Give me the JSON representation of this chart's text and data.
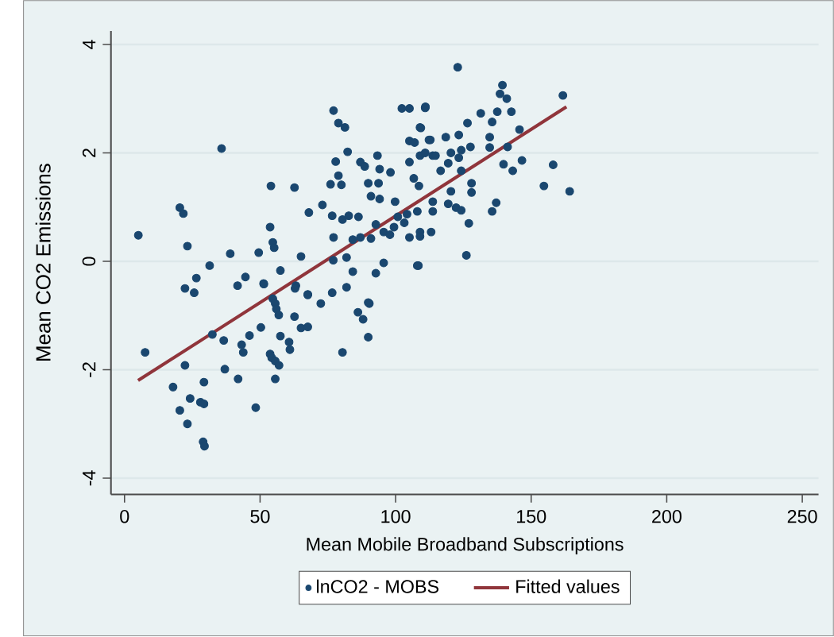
{
  "chart_data": {
    "type": "scatter",
    "xlabel": "Mean Mobile Broadband Subscriptions",
    "ylabel": "Mean CO2 Emissions",
    "xlim": [
      -5,
      256
    ],
    "ylim": [
      -4.3,
      4.25
    ],
    "xticks": [
      0,
      50,
      100,
      150,
      200,
      250
    ],
    "yticks": [
      -4,
      -2,
      0,
      2,
      4
    ],
    "grid": "y",
    "legend": "bottom",
    "series": [
      {
        "name": "lnCO2 - MOBS",
        "type": "scatter",
        "marker": "circle",
        "color": "#1a476f",
        "x": [
          5.1,
          20.4,
          21.7,
          23.2,
          35.8,
          31.4,
          39,
          49.5,
          53.7,
          54,
          62.7,
          68,
          73,
          54.7,
          55.2,
          65.1,
          77.1,
          78.9,
          81.3,
          82.3,
          77.9,
          76,
          80,
          78.9,
          87,
          88.6,
          93.3,
          94.1,
          98.1,
          89.9,
          93.7,
          90.9,
          94.1,
          99.8,
          76.6,
          80.4,
          82.7,
          86.3,
          77.1,
          84.2,
          87,
          90.9,
          95.6,
          97.9,
          99.4,
          103.2,
          100.8,
          104.2,
          102.3,
          105.1,
          110.9,
          109,
          105.1,
          107,
          112.8,
          105.1,
          109,
          113.7,
          106.7,
          108.6,
          92.7,
          77,
          81.9,
          84.2,
          95.6,
          92.7,
          109,
          105.1,
          108.4,
          113.7,
          57.5,
          41.7,
          44.6,
          51.3,
          22.3,
          25.7,
          26.5,
          63.2,
          67.6,
          72.4,
          76.6,
          81.9,
          90.3,
          7.6,
          22.3,
          17.9,
          20.4,
          23.2,
          24.2,
          28,
          29.3,
          29.3,
          29,
          29.5,
          32.4,
          36.6,
          37,
          41.9,
          48.4,
          43.2,
          43.8,
          46.1,
          50.3,
          51.4,
          54.7,
          55.6,
          56,
          56.9,
          57.5,
          53.7,
          54.3,
          55.6,
          57,
          55.6,
          60.7,
          61,
          62.9,
          62.7,
          65.1,
          67.6,
          67.6,
          80.4,
          86.1,
          88,
          89.9,
          89.9,
          122.9,
          139.4,
          138.5,
          141,
          161.7,
          111,
          131.4,
          137.5,
          142.7,
          135.6,
          126.5,
          109.3,
          145.7,
          118.5,
          123.3,
          134.7,
          112.3,
          110.9,
          114.7,
          120.4,
          124.2,
          127.6,
          119.4,
          123.3,
          116.6,
          124.2,
          134.7,
          141.3,
          139.8,
          143.2,
          146.6,
          158.1,
          154.7,
          164.2,
          128,
          128,
          120.4,
          113.7,
          119.4,
          122.3,
          124.2,
          137.1,
          135.6,
          108,
          127,
          113.1,
          109,
          126.1,
          108
        ],
        "values": [
          0.48,
          0.99,
          0.88,
          0.28,
          2.08,
          -0.08,
          0.14,
          0.16,
          0.63,
          1.39,
          1.36,
          0.9,
          1.04,
          0.35,
          0.25,
          0.09,
          2.78,
          2.55,
          2.47,
          2.02,
          1.84,
          1.42,
          1.41,
          1.58,
          1.83,
          1.75,
          1.95,
          1.7,
          1.64,
          1.44,
          1.44,
          1.2,
          1.15,
          1.1,
          0.84,
          0.77,
          0.84,
          0.82,
          0.44,
          0.4,
          0.44,
          0.42,
          0.54,
          0.49,
          0.63,
          0.71,
          0.82,
          0.87,
          2.82,
          2.82,
          2.83,
          2.47,
          2.22,
          2.19,
          2.24,
          1.83,
          1.95,
          1.95,
          1.53,
          1.39,
          0.68,
          0.02,
          0.07,
          -0.19,
          -0.03,
          -0.22,
          0.54,
          0.44,
          -0.08,
          0.92,
          -0.17,
          -0.45,
          -0.29,
          -0.41,
          -0.5,
          -0.58,
          -0.31,
          -0.45,
          -0.61,
          -0.78,
          -0.58,
          -0.48,
          -0.78,
          -1.68,
          -1.92,
          -2.32,
          -2.75,
          -3.0,
          -2.53,
          -2.6,
          -2.63,
          -2.23,
          -3.33,
          -3.41,
          -1.35,
          -1.46,
          -1.99,
          -2.17,
          -2.7,
          -1.54,
          -1.68,
          -1.37,
          -1.22,
          -0.42,
          -0.69,
          -0.78,
          -0.88,
          -0.99,
          -1.38,
          -1.71,
          -1.78,
          -1.84,
          -1.92,
          -2.17,
          -1.49,
          -1.63,
          -0.5,
          -1.02,
          -1.23,
          -1.21,
          -0.62,
          -1.68,
          -0.94,
          -1.07,
          -0.76,
          -1.4,
          3.58,
          3.25,
          3.09,
          3.0,
          3.06,
          2.85,
          2.73,
          2.76,
          2.76,
          2.57,
          2.55,
          2.46,
          2.43,
          2.29,
          2.33,
          2.29,
          2.24,
          2.0,
          1.95,
          2.0,
          2.05,
          2.11,
          1.81,
          1.91,
          1.67,
          1.67,
          2.1,
          2.11,
          1.79,
          1.67,
          1.86,
          1.78,
          1.39,
          1.29,
          1.44,
          1.27,
          1.29,
          1.1,
          1.06,
          0.99,
          0.94,
          1.08,
          0.92,
          0.92,
          0.7,
          0.54,
          0.46,
          0.11,
          -0.08
        ]
      },
      {
        "name": "Fitted values",
        "type": "line",
        "marker": "none",
        "color": "#90353b",
        "x": [
          5,
          163
        ],
        "values": [
          -2.2,
          2.85
        ]
      }
    ]
  }
}
